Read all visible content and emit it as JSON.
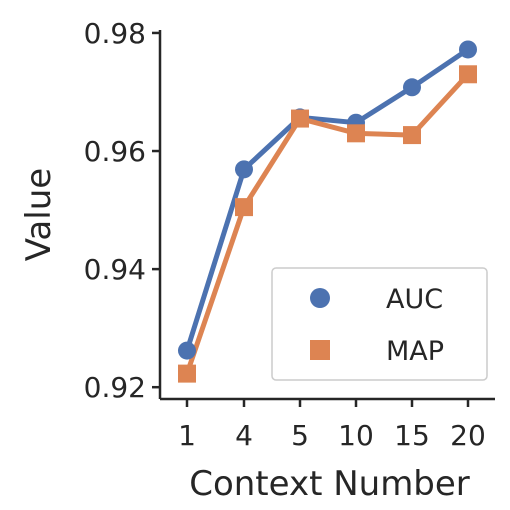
{
  "chart_data": {
    "type": "line",
    "categories": [
      "1",
      "4",
      "5",
      "10",
      "15",
      "20"
    ],
    "xlabel": "Context Number",
    "ylabel": "Value",
    "ylim": [
      0.918,
      0.9805
    ],
    "yticks": [
      0.92,
      0.94,
      0.96,
      0.98
    ],
    "ytick_labels": [
      "0.92",
      "0.94",
      "0.96",
      "0.98"
    ],
    "grid": false,
    "legend_position": "lower-right",
    "series": [
      {
        "name": "AUC",
        "marker": "circle",
        "color": "#4C72B0",
        "values": [
          0.9262,
          0.9569,
          0.9657,
          0.9648,
          0.9708,
          0.9772
        ]
      },
      {
        "name": "MAP",
        "marker": "square",
        "color": "#DD8452",
        "values": [
          0.9223,
          0.9505,
          0.9655,
          0.963,
          0.9627,
          0.973
        ]
      }
    ]
  }
}
